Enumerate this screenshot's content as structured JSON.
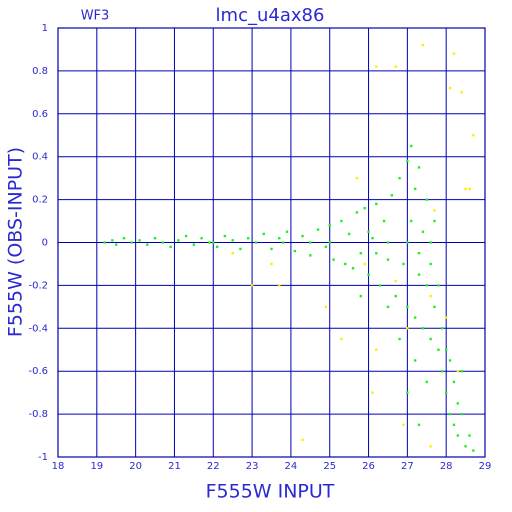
{
  "chart_data": {
    "type": "scatter",
    "title": "lmc_u4ax86",
    "annotation": "WF3",
    "x_label": "F555W INPUT",
    "y_label": "F555W (OBS-INPUT)",
    "xlim": [
      18,
      29
    ],
    "ylim": [
      -1,
      1
    ],
    "xticks": [
      18,
      19,
      20,
      21,
      22,
      23,
      24,
      25,
      26,
      27,
      28,
      29
    ],
    "yticks": [
      -1,
      -0.8,
      -0.6,
      -0.4,
      -0.2,
      0,
      0.2,
      0.4,
      0.6,
      0.8,
      1
    ],
    "grid": true,
    "series": [
      {
        "color": "#22ee22",
        "x": [
          19.2,
          19.4,
          19.5,
          19.7,
          19.9,
          20.1,
          20.3,
          20.5,
          20.7,
          20.9,
          21.1,
          21.3,
          21.5,
          21.7,
          21.9,
          22.1,
          22.3,
          22.5,
          22.7,
          22.9,
          23.1,
          23.3,
          23.5,
          23.7,
          23.9,
          24.1,
          24.3,
          24.5,
          24.7,
          24.9,
          25.0,
          25.1,
          25.3,
          25.4,
          25.5,
          25.6,
          25.7,
          25.8,
          25.9,
          26.0,
          26.1,
          26.2,
          26.3,
          26.4,
          26.5,
          26.6,
          26.7,
          26.8,
          26.9,
          27.0,
          27.0,
          27.1,
          27.1,
          27.2,
          27.2,
          27.3,
          27.3,
          27.4,
          27.4,
          27.5,
          27.5,
          27.6,
          27.6,
          27.7,
          27.7,
          27.8,
          27.8,
          27.9,
          27.9,
          28.0,
          28.0,
          28.1,
          28.1,
          28.2,
          28.2,
          28.3,
          28.3,
          28.4,
          28.5,
          28.6,
          28.7,
          28.4,
          27.2,
          27.5,
          26.5,
          25.8,
          26.8,
          27.0,
          27.3,
          25.0,
          24.5,
          26.0,
          26.5,
          27.0,
          27.3,
          26.2,
          27.6,
          23.8,
          22.0
        ],
        "values": [
          0,
          0.01,
          -0.01,
          0.02,
          0,
          0.01,
          -0.01,
          0.02,
          0,
          -0.02,
          0.01,
          0.03,
          -0.01,
          0.02,
          0,
          -0.02,
          0.03,
          0.01,
          -0.03,
          0.02,
          0,
          0.04,
          -0.03,
          0.02,
          0.05,
          -0.04,
          0.03,
          -0.06,
          0.06,
          -0.02,
          0.08,
          -0.08,
          0.1,
          -0.1,
          0.04,
          -0.12,
          0.14,
          -0.05,
          0.16,
          -0.15,
          0.02,
          0.18,
          -0.2,
          0.1,
          -0.08,
          0.22,
          -0.25,
          0.3,
          -0.1,
          0.38,
          -0.3,
          0.45,
          0.1,
          -0.35,
          0.25,
          -0.15,
          0.35,
          -0.4,
          0.05,
          -0.2,
          0.2,
          -0.45,
          -0.1,
          0.1,
          -0.3,
          -0.5,
          -0.2,
          -0.4,
          -0.6,
          -0.5,
          -0.7,
          -0.55,
          -0.8,
          -0.65,
          -0.85,
          -0.75,
          -0.9,
          -0.8,
          -0.95,
          -0.9,
          -0.97,
          -0.6,
          -0.55,
          -0.65,
          -0.3,
          -0.25,
          -0.45,
          -0.7,
          -0.85,
          0,
          0,
          0.05,
          0,
          0,
          -0.05,
          -0.05,
          0,
          0,
          0
        ]
      },
      {
        "color": "#ffee00",
        "x": [
          26.2,
          26.7,
          28.1,
          28.4,
          28.2,
          27.4,
          28.7,
          28.5,
          25.7,
          23.7,
          23.0,
          24.9,
          26.2,
          26.1,
          25.3,
          27.0,
          27.6,
          28.0,
          28.3,
          27.6,
          24.3,
          26.9,
          25.9,
          27.7,
          28.6,
          22.5,
          23.5,
          26.7
        ],
        "values": [
          0.82,
          0.82,
          0.72,
          0.7,
          0.88,
          0.92,
          0.5,
          0.25,
          0.3,
          -0.2,
          -0.2,
          -0.3,
          -0.5,
          -0.7,
          -0.45,
          -0.4,
          -0.25,
          -0.35,
          -0.6,
          -0.95,
          -0.92,
          -0.85,
          -0.1,
          0.15,
          0.25,
          -0.05,
          -0.1,
          -0.18
        ]
      }
    ]
  }
}
